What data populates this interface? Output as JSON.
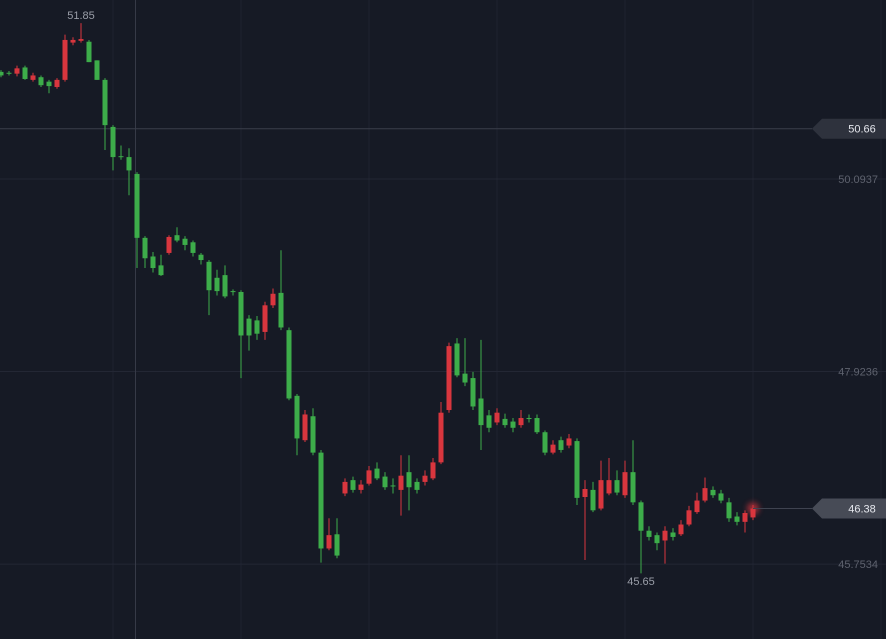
{
  "chart_data": {
    "type": "candlestick",
    "up_color": "#d9363e",
    "down_color": "#3dad4a",
    "ylim": [
      44.91,
      52.11
    ],
    "yticks": [
      50.0937,
      47.9236,
      45.7534
    ],
    "grid": true,
    "annotations": {
      "high": 51.85,
      "low": 45.65,
      "crosshair": 50.66,
      "last": 46.38
    },
    "ohlc": [
      [
        51.3,
        51.32,
        51.24,
        51.26
      ],
      [
        51.29,
        51.31,
        51.26,
        51.28
      ],
      [
        51.28,
        51.37,
        51.25,
        51.34
      ],
      [
        51.35,
        51.37,
        51.21,
        51.22
      ],
      [
        51.21,
        51.29,
        51.19,
        51.26
      ],
      [
        51.24,
        51.26,
        51.13,
        51.15
      ],
      [
        51.19,
        51.21,
        51.06,
        51.14
      ],
      [
        51.13,
        51.23,
        51.11,
        51.21
      ],
      [
        51.21,
        51.72,
        51.19,
        51.66
      ],
      [
        51.63,
        51.69,
        51.6,
        51.66
      ],
      [
        51.65,
        51.85,
        51.63,
        51.67
      ],
      [
        51.64,
        51.66,
        51.41,
        51.41
      ],
      [
        51.43,
        51.43,
        51.21,
        51.21
      ],
      [
        51.21,
        51.23,
        50.42,
        50.7
      ],
      [
        50.68,
        50.7,
        50.19,
        50.34
      ],
      [
        50.35,
        50.47,
        50.31,
        50.34
      ],
      [
        50.34,
        50.44,
        49.91,
        50.19
      ],
      [
        50.15,
        50.17,
        49.09,
        49.43
      ],
      [
        49.43,
        49.45,
        49.09,
        49.2
      ],
      [
        49.22,
        49.27,
        49.04,
        49.09
      ],
      [
        49.12,
        49.24,
        49.0,
        49.01
      ],
      [
        49.26,
        49.46,
        49.24,
        49.44
      ],
      [
        49.46,
        49.55,
        49.38,
        49.4
      ],
      [
        49.42,
        49.45,
        49.29,
        49.35
      ],
      [
        49.38,
        49.4,
        49.22,
        49.26
      ],
      [
        49.24,
        49.26,
        49.13,
        49.18
      ],
      [
        49.16,
        49.18,
        48.56,
        48.84
      ],
      [
        48.98,
        49.07,
        48.78,
        48.83
      ],
      [
        49.01,
        49.12,
        48.75,
        48.77
      ],
      [
        48.83,
        48.85,
        48.78,
        48.82
      ],
      [
        48.82,
        48.84,
        47.85,
        48.33
      ],
      [
        48.52,
        48.56,
        48.16,
        48.33
      ],
      [
        48.5,
        48.55,
        48.28,
        48.35
      ],
      [
        48.37,
        48.71,
        48.28,
        48.67
      ],
      [
        48.67,
        48.86,
        48.64,
        48.8
      ],
      [
        48.81,
        49.29,
        48.39,
        48.42
      ],
      [
        48.39,
        48.42,
        47.6,
        47.62
      ],
      [
        47.65,
        47.67,
        46.98,
        47.17
      ],
      [
        47.15,
        47.49,
        47.13,
        47.44
      ],
      [
        47.42,
        47.51,
        46.98,
        47.01
      ],
      [
        47.01,
        47.04,
        45.77,
        45.93
      ],
      [
        45.93,
        46.27,
        45.91,
        46.08
      ],
      [
        46.09,
        46.27,
        45.82,
        45.85
      ],
      [
        46.55,
        46.72,
        46.52,
        46.68
      ],
      [
        46.7,
        46.74,
        46.56,
        46.59
      ],
      [
        46.59,
        46.7,
        46.55,
        46.65
      ],
      [
        46.66,
        46.86,
        46.64,
        46.81
      ],
      [
        46.83,
        46.9,
        46.7,
        46.72
      ],
      [
        46.74,
        46.79,
        46.59,
        46.62
      ],
      [
        46.64,
        46.72,
        46.55,
        46.63
      ],
      [
        46.59,
        46.98,
        46.3,
        46.75
      ],
      [
        46.79,
        46.98,
        46.36,
        46.62
      ],
      [
        46.68,
        46.72,
        46.55,
        46.59
      ],
      [
        46.68,
        46.81,
        46.64,
        46.75
      ],
      [
        46.72,
        46.95,
        46.7,
        46.9
      ],
      [
        46.9,
        47.58,
        46.88,
        47.46
      ],
      [
        47.49,
        48.25,
        47.46,
        48.21
      ],
      [
        48.24,
        48.3,
        47.86,
        47.88
      ],
      [
        47.9,
        48.3,
        47.76,
        47.8
      ],
      [
        47.85,
        47.92,
        47.49,
        47.53
      ],
      [
        47.62,
        48.28,
        47.04,
        47.32
      ],
      [
        47.43,
        47.49,
        47.24,
        47.29
      ],
      [
        47.35,
        47.51,
        47.32,
        47.46
      ],
      [
        47.39,
        47.45,
        47.29,
        47.32
      ],
      [
        47.36,
        47.4,
        47.24,
        47.29
      ],
      [
        47.32,
        47.49,
        47.29,
        47.4
      ],
      [
        47.4,
        47.44,
        47.35,
        47.39
      ],
      [
        47.4,
        47.44,
        47.22,
        47.24
      ],
      [
        47.24,
        47.26,
        46.98,
        47.01
      ],
      [
        47.01,
        47.15,
        46.99,
        47.1
      ],
      [
        47.15,
        47.19,
        47.01,
        47.04
      ],
      [
        47.09,
        47.22,
        47.06,
        47.17
      ],
      [
        47.14,
        47.17,
        46.42,
        46.5
      ],
      [
        46.51,
        46.7,
        45.8,
        46.6
      ],
      [
        46.59,
        46.68,
        46.34,
        46.36
      ],
      [
        46.38,
        46.92,
        46.36,
        46.7
      ],
      [
        46.55,
        46.95,
        46.53,
        46.7
      ],
      [
        46.7,
        46.81,
        46.53,
        46.56
      ],
      [
        46.53,
        46.92,
        46.5,
        46.79
      ],
      [
        46.79,
        47.15,
        46.42,
        46.45
      ],
      [
        46.45,
        46.47,
        45.65,
        46.13
      ],
      [
        46.13,
        46.18,
        46.02,
        46.06
      ],
      [
        46.08,
        46.11,
        45.91,
        45.99
      ],
      [
        46.02,
        46.18,
        45.76,
        46.13
      ],
      [
        46.11,
        46.16,
        46.02,
        46.06
      ],
      [
        46.09,
        46.25,
        46.07,
        46.2
      ],
      [
        46.2,
        46.41,
        46.18,
        46.36
      ],
      [
        46.34,
        46.56,
        46.32,
        46.47
      ],
      [
        46.47,
        46.73,
        46.45,
        46.61
      ],
      [
        46.59,
        46.63,
        46.5,
        46.53
      ],
      [
        46.55,
        46.59,
        46.44,
        46.47
      ],
      [
        46.45,
        46.5,
        46.23,
        46.27
      ],
      [
        46.29,
        46.34,
        46.19,
        46.23
      ],
      [
        46.23,
        46.36,
        46.11,
        46.33
      ],
      [
        46.28,
        46.42,
        46.25,
        46.38
      ]
    ]
  }
}
